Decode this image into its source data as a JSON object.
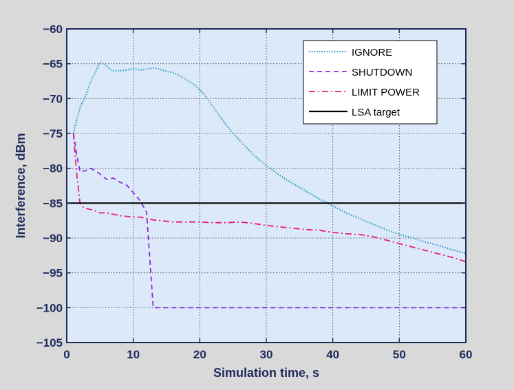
{
  "chart_data": {
    "type": "line",
    "title": "",
    "xlabel": "Simulation time, s",
    "ylabel": "Interference, dBm",
    "xlim": [
      0,
      60
    ],
    "ylim": [
      -105,
      -60
    ],
    "xticks": [
      0,
      10,
      20,
      30,
      40,
      50,
      60
    ],
    "xtick_labels": [
      "0",
      "10",
      "20",
      "30",
      "40",
      "50",
      "60"
    ],
    "yticks": [
      -60,
      -65,
      -70,
      -75,
      -80,
      -85,
      -90,
      -95,
      -100,
      -105
    ],
    "ytick_labels": [
      "−60",
      "−65",
      "−70",
      "−75",
      "−80",
      "−85",
      "−90",
      "−95",
      "−100",
      "−105"
    ],
    "grid": true,
    "legend_position": "top-right",
    "colors": {
      "figure_bg": "#d9d9d9",
      "plot_bg": "#dce9f8",
      "axis": "#1f2a5c",
      "grid": "#333333"
    },
    "series": [
      {
        "name": "IGNORE",
        "color": "#2a9bc4",
        "style": "dotted",
        "x": [
          1,
          1.5,
          2,
          2.5,
          3,
          3.5,
          4,
          4.5,
          5,
          5.5,
          6,
          6.5,
          7,
          8,
          9,
          10,
          11,
          12,
          13,
          14,
          15,
          16,
          17,
          18,
          19,
          20,
          21,
          22,
          23,
          24,
          25,
          26,
          27,
          28,
          29,
          30,
          32,
          34,
          36,
          38,
          40,
          42,
          44,
          46,
          48,
          50,
          52,
          54,
          56,
          58,
          60
        ],
        "y": [
          -75,
          -73,
          -71.3,
          -70.3,
          -69.2,
          -67.8,
          -66.8,
          -65.8,
          -64.8,
          -65.0,
          -65.3,
          -65.8,
          -66.0,
          -66.0,
          -65.9,
          -65.7,
          -65.9,
          -65.8,
          -65.6,
          -65.8,
          -66.1,
          -66.3,
          -66.7,
          -67.3,
          -67.9,
          -68.7,
          -69.8,
          -71.2,
          -72.5,
          -73.8,
          -75.0,
          -76.0,
          -77.0,
          -78.0,
          -78.8,
          -79.6,
          -81.0,
          -82.2,
          -83.3,
          -84.4,
          -85.4,
          -86.4,
          -87.2,
          -88.0,
          -88.8,
          -89.5,
          -90.0,
          -90.6,
          -91.1,
          -91.7,
          -92.2
        ]
      },
      {
        "name": "SHUTDOWN",
        "color": "#8a2be2",
        "style": "dashed",
        "x": [
          1,
          1.5,
          2,
          2.5,
          3,
          3.5,
          4,
          5,
          6,
          7,
          8,
          9,
          10,
          11,
          12,
          13,
          14,
          20,
          30,
          40,
          50,
          60
        ],
        "y": [
          -75,
          -78,
          -80.5,
          -80.4,
          -80.3,
          -80.0,
          -80.2,
          -80.8,
          -81.6,
          -81.4,
          -82.0,
          -82.4,
          -83.5,
          -84.6,
          -86.3,
          -100,
          -100,
          -100,
          -100,
          -100,
          -100,
          -100
        ]
      },
      {
        "name": "LIMIT POWER",
        "color": "#e8177d",
        "style": "dashdot",
        "x": [
          1,
          1.5,
          2,
          2.5,
          3,
          4,
          5,
          6,
          7,
          8,
          9,
          10,
          11,
          12,
          13,
          14,
          15,
          16,
          18,
          20,
          22,
          24,
          26,
          28,
          30,
          32,
          34,
          36,
          38,
          40,
          42,
          44,
          46,
          48,
          50,
          52,
          54,
          56,
          58,
          60
        ],
        "y": [
          -75,
          -80.8,
          -85.0,
          -85.6,
          -85.8,
          -86.0,
          -86.4,
          -86.4,
          -86.6,
          -86.8,
          -86.9,
          -87.0,
          -87.0,
          -87.2,
          -87.4,
          -87.5,
          -87.6,
          -87.7,
          -87.7,
          -87.7,
          -87.8,
          -87.8,
          -87.7,
          -87.9,
          -88.2,
          -88.4,
          -88.6,
          -88.8,
          -88.9,
          -89.2,
          -89.4,
          -89.5,
          -89.8,
          -90.3,
          -90.8,
          -91.3,
          -91.8,
          -92.3,
          -92.8,
          -93.4
        ]
      },
      {
        "name": "LSA target",
        "color": "#000000",
        "style": "solid",
        "x": [
          0,
          60
        ],
        "y": [
          -85,
          -85
        ]
      }
    ]
  }
}
